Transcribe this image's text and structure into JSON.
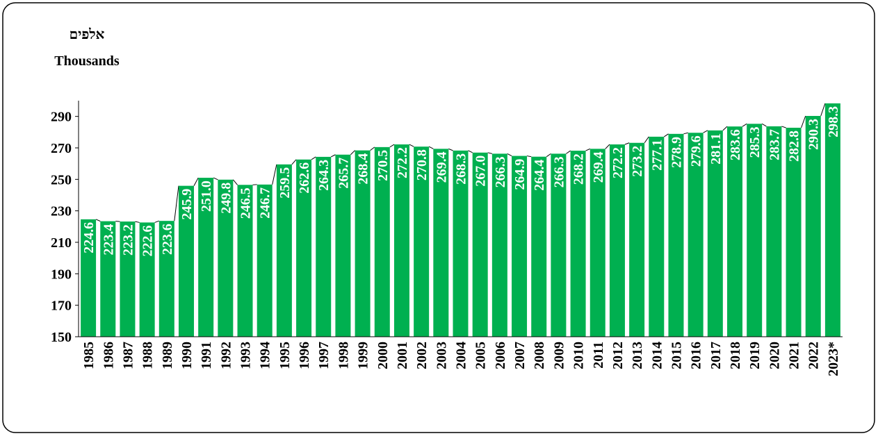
{
  "chart_data": {
    "type": "bar",
    "axis_title_lines": [
      "אלפים",
      "Thousands"
    ],
    "categories": [
      "1985",
      "1986",
      "1987",
      "1988",
      "1989",
      "1990",
      "1991",
      "1992",
      "1993",
      "1994",
      "1995",
      "1996",
      "1997",
      "1998",
      "1999",
      "2000",
      "2001",
      "2002",
      "2003",
      "2004",
      "2005",
      "2006",
      "2007",
      "2008",
      "2009",
      "2010",
      "2011",
      "2012",
      "2013",
      "2014",
      "2015",
      "2016",
      "2017",
      "2018",
      "2019",
      "2020",
      "2021",
      "2022",
      "2023*"
    ],
    "values": [
      224.6,
      223.4,
      223.2,
      222.6,
      223.6,
      245.9,
      251.0,
      249.8,
      246.5,
      246.7,
      259.5,
      262.6,
      264.3,
      265.7,
      268.4,
      270.5,
      272.2,
      270.8,
      269.4,
      268.3,
      267.0,
      266.3,
      264.9,
      264.4,
      266.3,
      268.2,
      269.4,
      272.2,
      273.2,
      277.1,
      278.9,
      279.6,
      281.1,
      283.6,
      285.3,
      283.7,
      282.8,
      290.3,
      298.3
    ],
    "value_labels": [
      "224.6",
      "223.4",
      "223.2",
      "222.6",
      "223.6",
      "245.9",
      "251.0",
      "249.8",
      "246.5",
      "246.7",
      "259.5",
      "262.6",
      "264.3",
      "265.7",
      "268.4",
      "270.5",
      "272.2",
      "270.8",
      "269.4",
      "268.3",
      "267.0",
      "266.3",
      "264.9",
      "264.4",
      "266.3",
      "268.2",
      "269.4",
      "272.2",
      "273.2",
      "277.1",
      "278.9",
      "279.6",
      "281.1",
      "283.6",
      "285.3",
      "283.7",
      "282.8",
      "290.3",
      "298.3"
    ],
    "color": "#00b050",
    "ylim": [
      150,
      300
    ],
    "yticks": [
      150,
      170,
      190,
      210,
      230,
      250,
      270,
      290
    ]
  }
}
